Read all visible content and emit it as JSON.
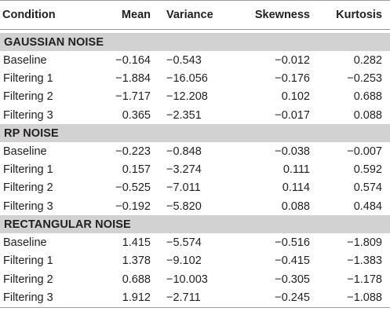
{
  "columns": [
    "Condition",
    "Mean",
    "Variance",
    "Skewness",
    "Kurtosis"
  ],
  "sections": [
    {
      "title": "GAUSSIAN NOISE",
      "rows": [
        [
          "Baseline",
          "−0.164",
          "−0.543",
          "−0.012",
          "0.282"
        ],
        [
          "Filtering 1",
          "−1.884",
          "−16.056",
          "−0.176",
          "−0.253"
        ],
        [
          "Filtering 2",
          "−1.717",
          "−12.208",
          "0.102",
          "0.688"
        ],
        [
          "Filtering 3",
          "0.365",
          "−2.351",
          "−0.017",
          "0.088"
        ]
      ]
    },
    {
      "title": "RP NOISE",
      "rows": [
        [
          "Baseline",
          "−0.223",
          "−0.848",
          "−0.038",
          "−0.007"
        ],
        [
          "Filtering 1",
          "0.157",
          "−3.274",
          "0.111",
          "0.592"
        ],
        [
          "Filtering 2",
          "−0.525",
          "−7.011",
          "0.114",
          "0.574"
        ],
        [
          "Filtering 3",
          "−0.192",
          "−5.820",
          "0.088",
          "0.484"
        ]
      ]
    },
    {
      "title": "RECTANGULAR NOISE",
      "rows": [
        [
          "Baseline",
          "1.415",
          "−5.574",
          "−0.516",
          "−1.809"
        ],
        [
          "Filtering 1",
          "1.378",
          "−9.102",
          "−0.415",
          "−1.383"
        ],
        [
          "Filtering 2",
          "0.688",
          "−10.003",
          "−0.305",
          "−1.178"
        ],
        [
          "Filtering 3",
          "1.912",
          "−2.711",
          "−0.245",
          "−1.088"
        ]
      ]
    }
  ]
}
